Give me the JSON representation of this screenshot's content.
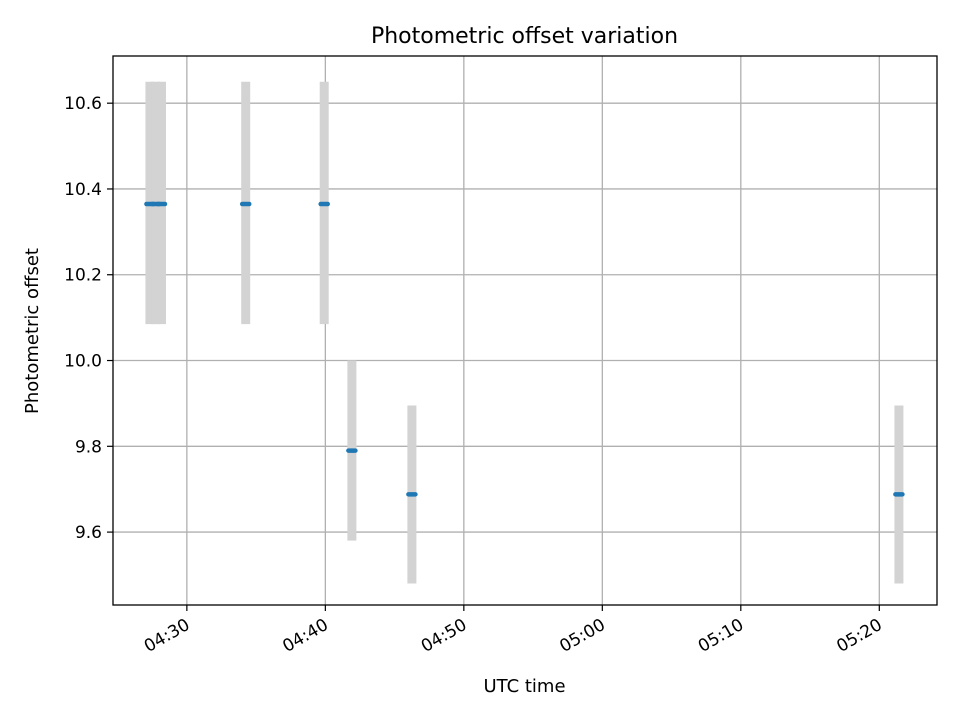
{
  "chart_data": {
    "type": "scatter",
    "title": "Photometric offset variation",
    "xlabel": "UTC time",
    "ylabel": "Photometric offset",
    "xlim": [
      "04:24:40",
      "05:24:10"
    ],
    "ylim": [
      9.43,
      10.71
    ],
    "x_ticks": [
      "04:30",
      "04:40",
      "04:50",
      "05:00",
      "05:10",
      "05:20"
    ],
    "y_ticks": [
      "9.6",
      "9.8",
      "10.0",
      "10.2",
      "10.4",
      "10.6"
    ],
    "grid": true,
    "series": [
      {
        "points": [
          {
            "x": "04:27:20",
            "y": 10.365,
            "err_low": 10.085,
            "err_high": 10.65
          },
          {
            "x": "04:27:45",
            "y": 10.365,
            "err_low": 10.085,
            "err_high": 10.65
          },
          {
            "x": "04:28:10",
            "y": 10.365,
            "err_low": 10.085,
            "err_high": 10.65
          },
          {
            "x": "04:34:15",
            "y": 10.365,
            "err_low": 10.085,
            "err_high": 10.65
          },
          {
            "x": "04:39:55",
            "y": 10.365,
            "err_low": 10.085,
            "err_high": 10.65
          },
          {
            "x": "04:41:55",
            "y": 9.79,
            "err_low": 9.58,
            "err_high": 10.0
          },
          {
            "x": "04:46:15",
            "y": 9.688,
            "err_low": 9.48,
            "err_high": 9.895
          },
          {
            "x": "05:21:25",
            "y": 9.688,
            "err_low": 9.48,
            "err_high": 9.895
          }
        ]
      }
    ],
    "colors": {
      "marker": "#1f77b4",
      "errorbar": "#d3d3d3",
      "grid": "#b0b0b0",
      "frame": "#000000"
    }
  }
}
